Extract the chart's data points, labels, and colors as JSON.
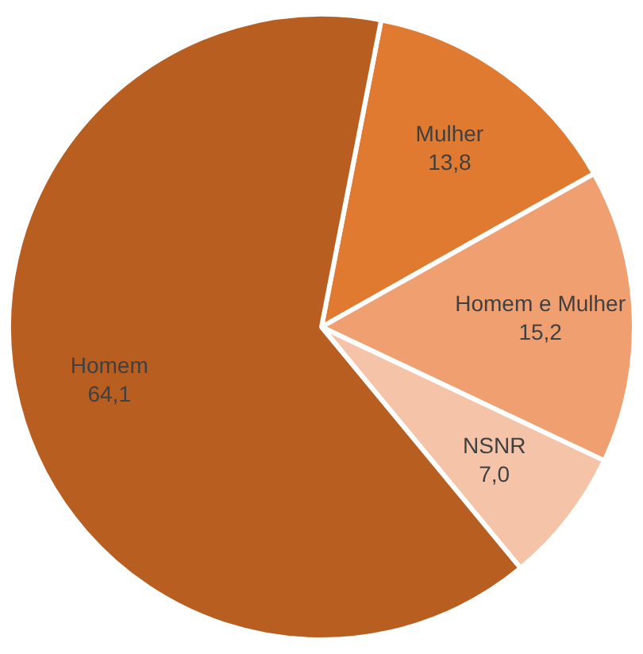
{
  "chart_data": {
    "type": "pie",
    "categories": [
      "Mulher",
      "Homem e Mulher",
      "NSNR",
      "Homem"
    ],
    "values": [
      13.8,
      15.2,
      7.0,
      64.1
    ],
    "value_labels": [
      "13,8",
      "15,2",
      "7,0",
      "64,1"
    ],
    "colors": [
      "#e07a30",
      "#f0a070",
      "#f4c3a8",
      "#b85e20"
    ],
    "legend": false
  }
}
